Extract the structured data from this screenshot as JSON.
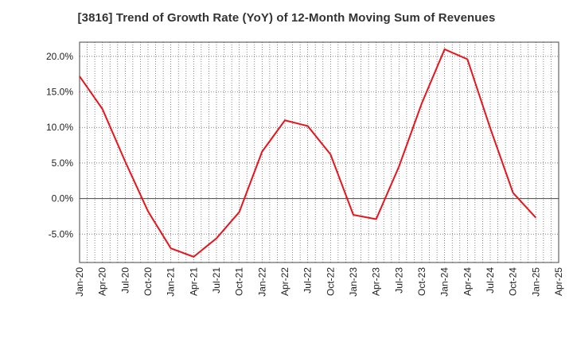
{
  "chart_data": {
    "type": "line",
    "title": "[3816]  Trend of Growth Rate (YoY) of 12-Month Moving Sum of Revenues",
    "xlabel": "",
    "ylabel": "",
    "x_tick_labels": [
      "Jan-20",
      "Apr-20",
      "Jul-20",
      "Oct-20",
      "Jan-21",
      "Apr-21",
      "Jul-21",
      "Oct-21",
      "Jan-22",
      "Apr-22",
      "Jul-22",
      "Oct-22",
      "Jan-23",
      "Apr-23",
      "Jul-23",
      "Oct-23",
      "Jan-24",
      "Apr-24",
      "Jul-24",
      "Oct-24",
      "Jan-25",
      "Apr-25"
    ],
    "y_ticks": [
      -5.0,
      0.0,
      5.0,
      10.0,
      15.0,
      20.0
    ],
    "y_tick_labels": [
      "-5.0%",
      "0.0%",
      "5.0%",
      "10.0%",
      "15.0%",
      "20.0%"
    ],
    "ylim": [
      -9.0,
      22.0
    ],
    "grid": true,
    "series": [
      {
        "color": "#e8141c",
        "x": [
          "Jan-20",
          "Apr-20",
          "Jul-20",
          "Oct-20",
          "Jan-21",
          "Apr-21",
          "Jul-21",
          "Oct-21",
          "Jan-22",
          "Apr-22",
          "Jul-22",
          "Oct-22",
          "Jan-23",
          "Apr-23",
          "Jul-23",
          "Oct-23",
          "Jan-24",
          "Apr-24",
          "Jul-24",
          "Oct-24",
          "Jan-25"
        ],
        "values": [
          17.2,
          12.6,
          5.2,
          -1.8,
          -7.0,
          -8.2,
          -5.6,
          -1.9,
          6.6,
          11.0,
          10.2,
          6.2,
          -2.3,
          -2.9,
          4.5,
          13.4,
          21.0,
          19.6,
          9.9,
          0.8,
          -2.7
        ]
      }
    ]
  }
}
